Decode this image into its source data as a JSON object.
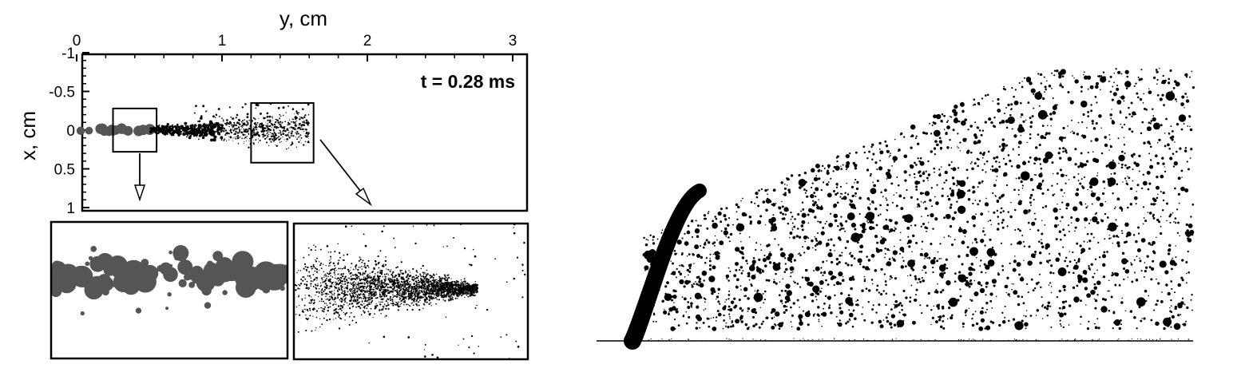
{
  "figure": {
    "left_panel": {
      "xlabel": "y, cm",
      "ylabel": "x, cm",
      "annotation": "t = 0.28 ms",
      "x_ticks": [
        {
          "value": 0,
          "label": "0"
        },
        {
          "value": 1,
          "label": "1"
        },
        {
          "value": 2,
          "label": "2"
        },
        {
          "value": 3,
          "label": "3"
        }
      ],
      "y_ticks": [
        {
          "value": -1,
          "label": "-1"
        },
        {
          "value": -0.5,
          "label": "-0.5"
        },
        {
          "value": 0,
          "label": "0"
        },
        {
          "value": 0.5,
          "label": "0.5"
        },
        {
          "value": 1,
          "label": "1"
        }
      ],
      "x_range": [
        0,
        3.1
      ],
      "y_range": [
        -1,
        1
      ],
      "zoom_boxes": [
        {
          "name": "upstream",
          "y_range": [
            0.25,
            0.55
          ],
          "x_range": [
            -0.28,
            0.28
          ],
          "color": "#555555"
        },
        {
          "name": "downstream",
          "y_range": [
            1.2,
            1.63
          ],
          "x_range": [
            -0.35,
            0.42
          ],
          "color": "#000000"
        }
      ],
      "colors": {
        "large_droplets": "#555555",
        "fine_droplets": "#000000"
      }
    },
    "right_panel": {
      "colors": {
        "droplets": "#000000"
      }
    }
  }
}
